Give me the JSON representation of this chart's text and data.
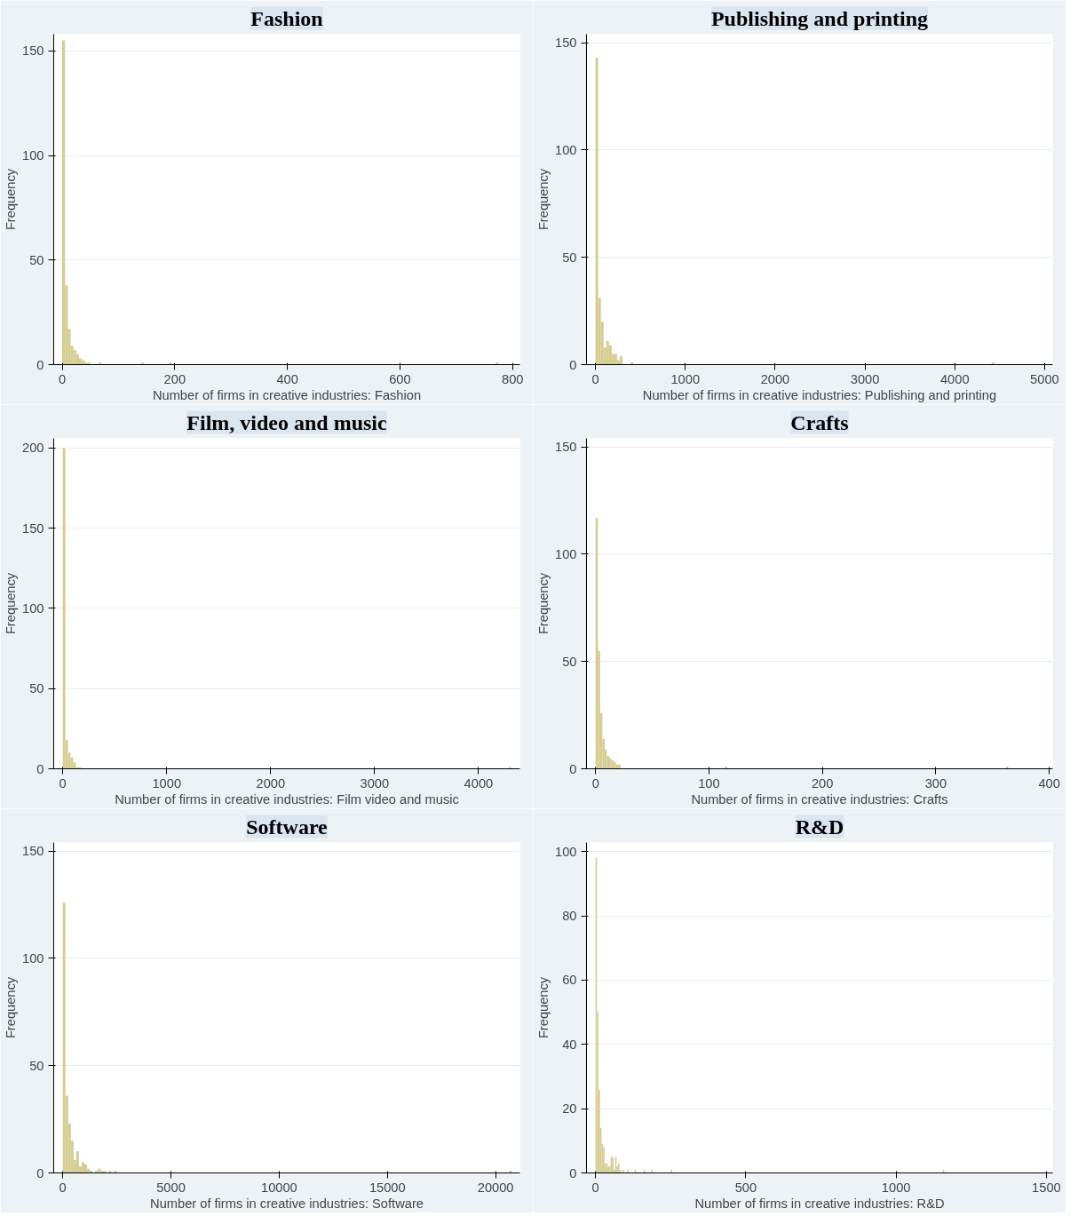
{
  "chart_data": [
    {
      "type": "histogram",
      "title": "Fashion",
      "xlabel": "Number of firms in creative industries: Fashion",
      "ylabel": "Frequency",
      "color": "#d6cd93",
      "grid": "y",
      "xlim": [
        -15,
        813
      ],
      "ylim": [
        0,
        158
      ],
      "xticks": [
        0,
        200,
        400,
        600,
        800
      ],
      "yticks": [
        0,
        50,
        100,
        150
      ],
      "bins": [
        0,
        5,
        10,
        15,
        20,
        25,
        30,
        35,
        40,
        45,
        50,
        65,
        70,
        140,
        145,
        190,
        195,
        770,
        775
      ],
      "values": [
        155,
        38,
        17,
        9,
        7,
        5,
        3,
        2,
        1,
        1,
        0,
        1,
        0,
        1,
        0,
        1,
        0,
        1
      ]
    },
    {
      "type": "histogram",
      "title": "Publishing and printing",
      "xlabel": "Number of firms in creative industries: Publishing and printing",
      "ylabel": "Frequency",
      "color": "#d6cd93",
      "grid": "y",
      "xlim": [
        -100,
        5090
      ],
      "ylim": [
        0,
        154
      ],
      "xticks": [
        0,
        1000,
        2000,
        3000,
        4000,
        5000
      ],
      "yticks": [
        0,
        50,
        100,
        150
      ],
      "bins": [
        0,
        30,
        60,
        90,
        120,
        150,
        180,
        210,
        240,
        270,
        300,
        390,
        420,
        4410,
        4440
      ],
      "values": [
        143,
        31,
        20,
        8,
        11,
        9,
        5,
        5,
        2,
        4,
        0,
        1,
        0,
        1
      ]
    },
    {
      "type": "histogram",
      "title": "Film, video and music",
      "xlabel": "Number of firms in creative industries: Film video and music",
      "ylabel": "Frequency",
      "color": "#d6cd93",
      "grid": "y",
      "xlim": [
        -87,
        4398
      ],
      "ylim": [
        0,
        206
      ],
      "xticks": [
        0,
        1000,
        2000,
        3000,
        4000
      ],
      "yticks": [
        0,
        50,
        100,
        150,
        200
      ],
      "bins": [
        0,
        25,
        50,
        75,
        100,
        125,
        150,
        175,
        4290,
        4315
      ],
      "values": [
        200,
        18,
        10,
        7,
        4,
        1,
        1,
        0,
        1
      ]
    },
    {
      "type": "histogram",
      "title": "Crafts",
      "xlabel": "Number of firms in creative industries: Crafts",
      "ylabel": "Frequency",
      "color": "#d6cd93",
      "grid": "y",
      "xlim": [
        -8,
        403
      ],
      "ylim": [
        0,
        154
      ],
      "xticks": [
        0,
        100,
        200,
        300,
        400
      ],
      "yticks": [
        0,
        50,
        100,
        150
      ],
      "bins": [
        0,
        2,
        4,
        6,
        8,
        10,
        12,
        14,
        16,
        18,
        20,
        22,
        114,
        116,
        362,
        364
      ],
      "values": [
        117,
        55,
        26,
        14,
        9,
        6,
        5,
        4,
        3,
        2,
        2,
        0,
        1,
        0,
        1
      ]
    },
    {
      "type": "histogram",
      "title": "Software",
      "xlabel": "Number of firms in creative industries: Software",
      "ylabel": "Frequency",
      "color": "#d6cd93",
      "grid": "y",
      "xlim": [
        -416,
        21122
      ],
      "ylim": [
        0,
        154
      ],
      "xticks": [
        0,
        5000,
        10000,
        15000,
        20000
      ],
      "yticks": [
        0,
        50,
        100,
        150
      ],
      "bins": [
        0,
        125,
        250,
        375,
        500,
        625,
        750,
        875,
        1000,
        1125,
        1250,
        1375,
        1500,
        1625,
        1750,
        1875,
        2000,
        2125,
        2250,
        2375,
        2500,
        20625,
        20750
      ],
      "values": [
        126,
        36,
        23,
        15,
        6,
        10,
        3,
        5,
        4,
        2,
        1,
        0,
        1,
        2,
        1,
        1,
        0,
        1,
        0,
        1,
        0,
        1
      ]
    },
    {
      "type": "histogram",
      "title": "R&D",
      "xlabel": "Number of firms in creative industries: R&D",
      "ylabel": "Frequency",
      "color": "#d6cd93",
      "grid": "y",
      "xlim": [
        -30,
        1521
      ],
      "ylim": [
        0,
        102.8
      ],
      "xticks": [
        0,
        500,
        1000,
        1500
      ],
      "yticks": [
        0,
        20,
        40,
        60,
        80,
        100
      ],
      "bins": [
        0,
        5,
        10,
        15,
        20,
        25,
        30,
        35,
        40,
        45,
        50,
        55,
        60,
        65,
        70,
        75,
        80,
        85,
        90,
        95,
        105,
        110,
        130,
        135,
        160,
        165,
        185,
        190,
        250,
        255,
        1155,
        1160
      ],
      "values": [
        98,
        50,
        26,
        14,
        9,
        8,
        3,
        3,
        2,
        2,
        5,
        5,
        1,
        5,
        2,
        3,
        1,
        0,
        1,
        0,
        1,
        0,
        1,
        0,
        1,
        0,
        1,
        0,
        1,
        0,
        1
      ]
    }
  ]
}
